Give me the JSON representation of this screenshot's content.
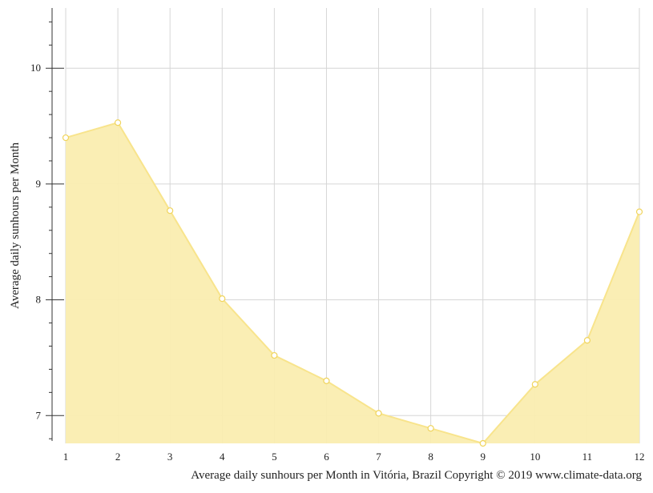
{
  "chart_data": {
    "type": "area",
    "title": "",
    "xlabel": "",
    "ylabel": "Average daily sunhours per Month",
    "caption": "Average daily sunhours per Month in Vitória, Brazil Copyright © 2019 www.climate-data.org",
    "x": [
      1,
      2,
      3,
      4,
      5,
      6,
      7,
      8,
      9,
      10,
      11,
      12
    ],
    "x_tick_labels": [
      "1",
      "2",
      "3",
      "4",
      "5",
      "6",
      "7",
      "8",
      "9",
      "10",
      "11",
      "12"
    ],
    "series": [
      {
        "values": [
          9.4,
          9.53,
          8.77,
          8.01,
          7.52,
          7.3,
          7.02,
          6.89,
          6.76,
          7.27,
          7.65,
          8.76
        ]
      }
    ],
    "y_ticks": [
      7,
      8,
      9,
      10
    ],
    "y_tick_labels": [
      "7",
      "8",
      "9",
      "10"
    ],
    "ylim": [
      6.76,
      10.52
    ],
    "xlim": [
      1,
      12
    ],
    "grid": true,
    "legend": "none",
    "colors": {
      "fill": "#faedb0",
      "line": "#f8e48c",
      "marker_fill": "#ffffff",
      "marker_stroke": "#f0d45c",
      "grid": "#d6d6d6",
      "axis": "#333333"
    }
  }
}
